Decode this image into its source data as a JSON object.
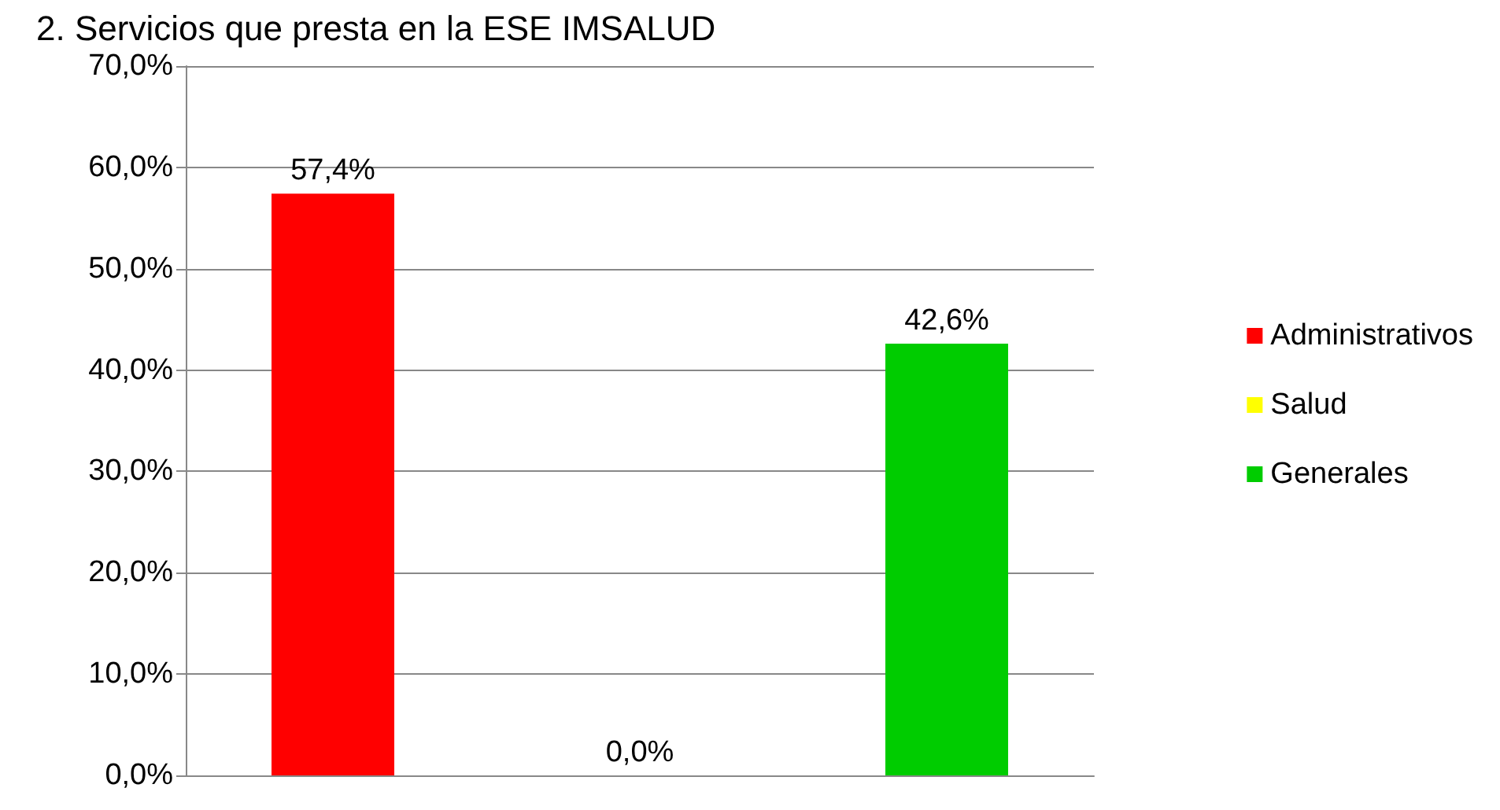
{
  "chart_data": {
    "type": "bar",
    "title": "2. Servicios que presta en la ESE IMSALUD",
    "categories": [
      null
    ],
    "series": [
      {
        "name": "Administrativos",
        "color": "#ff0000",
        "values": [
          57.4
        ],
        "value_labels": [
          "57,4%"
        ]
      },
      {
        "name": "Salud",
        "color": "#ffff00",
        "values": [
          0
        ],
        "value_labels": [
          "0,0%"
        ]
      },
      {
        "name": "Generales",
        "color": "#00cc00",
        "values": [
          42.6
        ],
        "value_labels": [
          "42,6%"
        ]
      }
    ],
    "ylim": [
      0,
      70
    ],
    "yticks": [
      {
        "value": 0,
        "label": "0,0%"
      },
      {
        "value": 10,
        "label": "10,0%"
      },
      {
        "value": 20,
        "label": "20,0%"
      },
      {
        "value": 30,
        "label": "30,0%"
      },
      {
        "value": 40,
        "label": "40,0%"
      },
      {
        "value": 50,
        "label": "50,0%"
      },
      {
        "value": 60,
        "label": "60,0%"
      },
      {
        "value": 70,
        "label": "70,0%"
      }
    ],
    "grid": "y",
    "legend": "right"
  }
}
